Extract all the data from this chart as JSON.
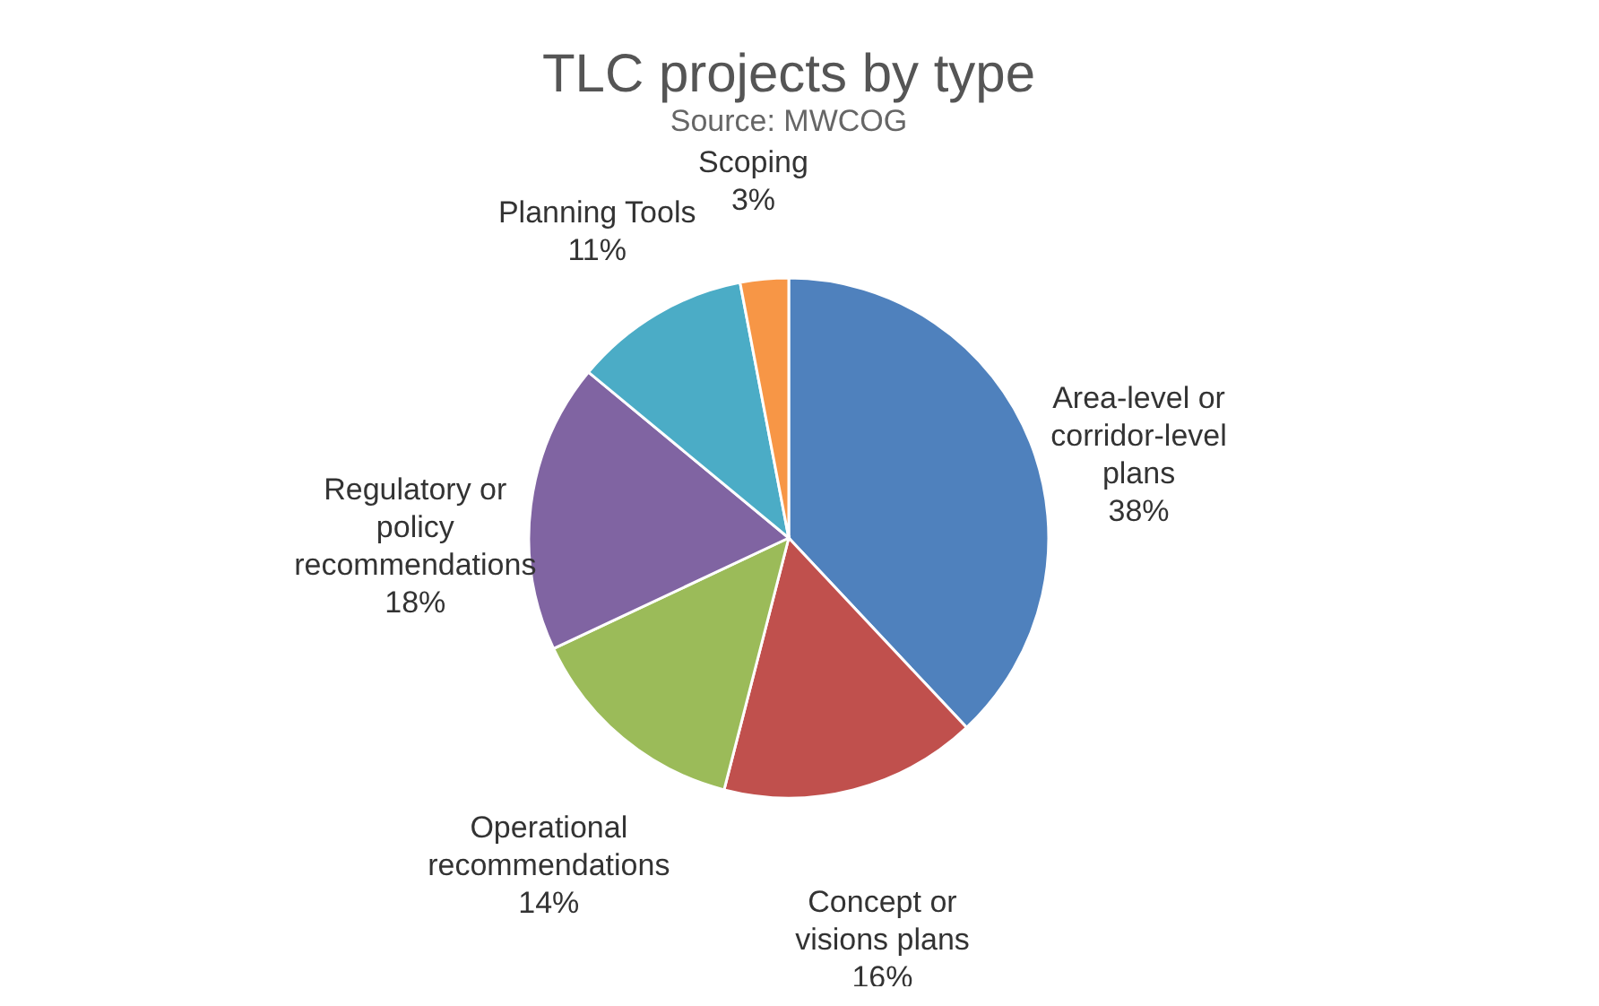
{
  "chart_data": {
    "type": "pie",
    "title": "TLC projects by type",
    "subtitle": "Source: MWCOG",
    "categories": [
      "Area-level or corridor-level plans",
      "Concept or visions plans",
      "Operational recommendations",
      "Regulatory or policy recommendations",
      "Planning Tools",
      "Scoping"
    ],
    "values": [
      38,
      16,
      14,
      18,
      11,
      3
    ],
    "value_labels": [
      "38%",
      "16%",
      "14%",
      "18%",
      "11%",
      "3%"
    ],
    "colors": [
      "#4f81bd",
      "#c0504d",
      "#9bbb59",
      "#8064a2",
      "#4bacc6",
      "#f79646"
    ],
    "legend": false
  }
}
